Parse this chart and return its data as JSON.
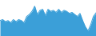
{
  "values": [
    30,
    32,
    28,
    30,
    26,
    32,
    28,
    32,
    30,
    26,
    38,
    42,
    48,
    58,
    42,
    50,
    52,
    40,
    52,
    48,
    50,
    46,
    52,
    46,
    50,
    48,
    44,
    46,
    42,
    38,
    44,
    30,
    18,
    10,
    22,
    38,
    45
  ],
  "line_color": "#3b9fd8",
  "fill_color": "#3b9fd8",
  "background_color": "#ffffff",
  "ylim_min": 0,
  "ylim_max": 70
}
